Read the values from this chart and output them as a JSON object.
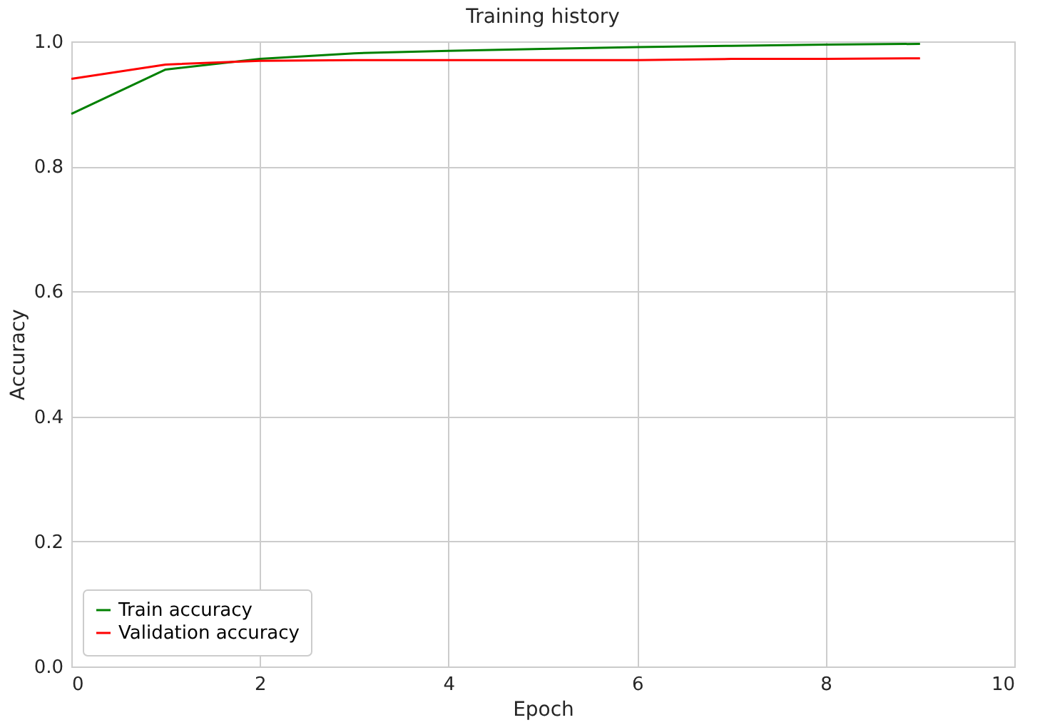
{
  "chart_data": {
    "type": "line",
    "title": "Training history",
    "xlabel": "Epoch",
    "ylabel": "Accuracy",
    "x": [
      0,
      1,
      2,
      3,
      4,
      5,
      6,
      7,
      8,
      9
    ],
    "series": [
      {
        "name": "Train accuracy",
        "color": "#008000",
        "values": [
          0.884,
          0.955,
          0.972,
          0.981,
          0.985,
          0.988,
          0.991,
          0.993,
          0.995,
          0.996
        ]
      },
      {
        "name": "Validation accuracy",
        "color": "#ff0000",
        "values": [
          0.94,
          0.963,
          0.969,
          0.97,
          0.97,
          0.97,
          0.97,
          0.972,
          0.972,
          0.973
        ]
      }
    ],
    "xlim": [
      0,
      10
    ],
    "ylim": [
      0,
      1.0
    ],
    "xticks": [
      0,
      2,
      4,
      6,
      8,
      10
    ],
    "yticks": [
      {
        "value": 0,
        "label": "0.0"
      },
      0.2,
      0.4,
      0.6,
      0.8,
      {
        "value": 1,
        "label": "1.0"
      }
    ],
    "grid": true,
    "legend": "bottom left",
    "marker": "none",
    "line_style": "solid"
  }
}
